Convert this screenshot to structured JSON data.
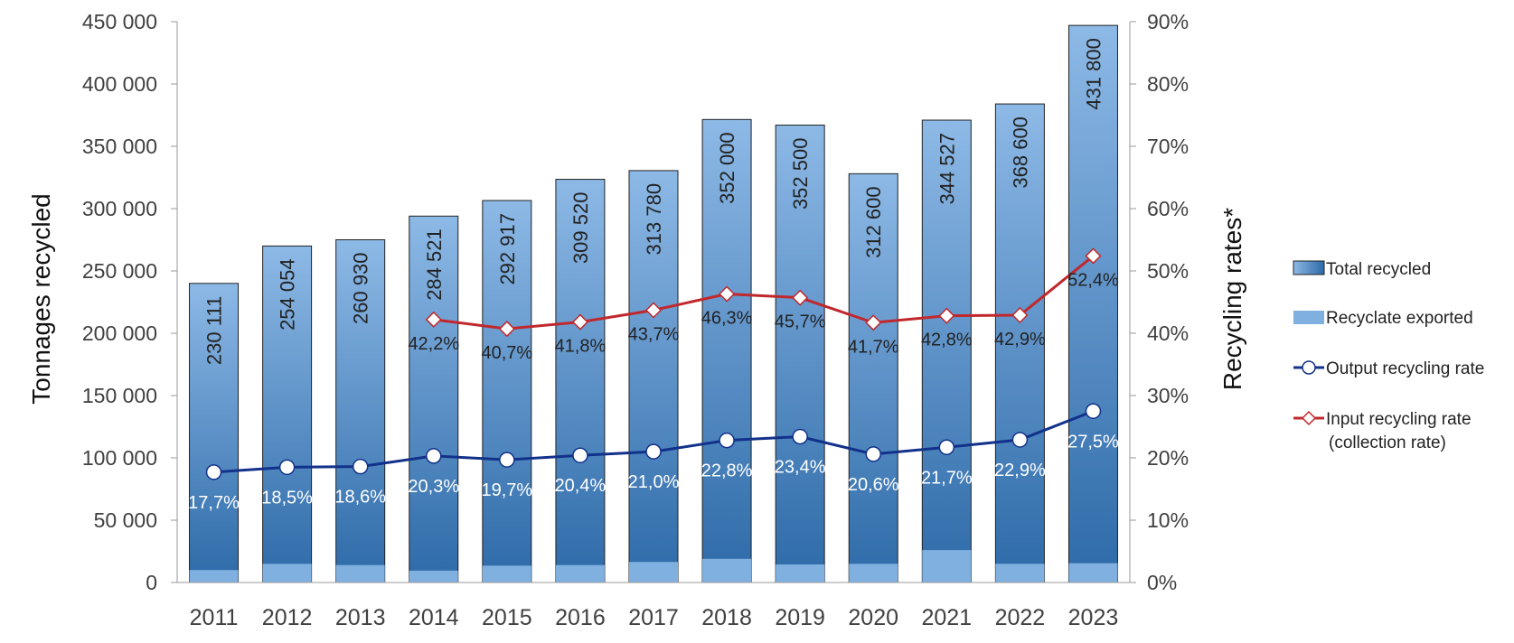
{
  "chart_data": {
    "type": "bar+line",
    "categories": [
      "2011",
      "2012",
      "2013",
      "2014",
      "2015",
      "2016",
      "2017",
      "2018",
      "2019",
      "2020",
      "2021",
      "2022",
      "2023"
    ],
    "series": [
      {
        "name": "Total recycled",
        "type": "bar",
        "axis": "left",
        "bar_heights": [
          240000,
          270000,
          275000,
          294000,
          306500,
          323500,
          330500,
          371500,
          367000,
          328000,
          371000,
          384000,
          447000
        ],
        "labels": [
          "230 111",
          "254 054",
          "260 930",
          "284 521",
          "292 917",
          "309 520",
          "313 780",
          "352 000",
          "352 500",
          "312 600",
          "344 527",
          "368 600",
          "431 800"
        ],
        "colors": {
          "top": "#8DB9E6",
          "bottom": "#2D6AA8"
        }
      },
      {
        "name": "Recyclate exported",
        "type": "bar",
        "axis": "left",
        "values": [
          10000,
          15000,
          14000,
          9500,
          13500,
          14000,
          16500,
          19000,
          14500,
          15000,
          26000,
          15000,
          15500
        ],
        "color": "#7FB0E0"
      },
      {
        "name": "Output recycling rate",
        "type": "line",
        "axis": "right",
        "values": [
          17.7,
          18.5,
          18.6,
          20.3,
          19.7,
          20.4,
          21.0,
          22.8,
          23.4,
          20.6,
          21.7,
          22.9,
          27.5
        ],
        "labels": [
          "17,7%",
          "18,5%",
          "18,6%",
          "20,3%",
          "19,7%",
          "20,4%",
          "21,0%",
          "22,8%",
          "23,4%",
          "20,6%",
          "21,7%",
          "22,9%",
          "27,5%"
        ],
        "color": "#12318A",
        "marker": "circle"
      },
      {
        "name": "Input recycling rate (collection rate)",
        "type": "line",
        "axis": "right",
        "values": [
          null,
          null,
          null,
          42.2,
          40.7,
          41.8,
          43.7,
          46.3,
          45.7,
          41.7,
          42.8,
          42.9,
          52.4
        ],
        "labels": [
          null,
          null,
          null,
          "42,2%",
          "40,7%",
          "41,8%",
          "43,7%",
          "46,3%",
          "45,7%",
          "41,7%",
          "42,8%",
          "42,9%",
          "52,4%"
        ],
        "color": "#C0282D",
        "marker": "diamond"
      }
    ],
    "y_left": {
      "label": "Tonnages recycled",
      "range": [
        0,
        450000
      ],
      "ticks": [
        "0",
        "50 000",
        "100 000",
        "150 000",
        "200 000",
        "250 000",
        "300 000",
        "350 000",
        "400 000",
        "450 000"
      ]
    },
    "y_right": {
      "label": "Recycling rates*",
      "range": [
        0,
        90
      ],
      "ticks": [
        "0%",
        "10%",
        "20%",
        "30%",
        "40%",
        "50%",
        "60%",
        "70%",
        "80%",
        "90%"
      ]
    },
    "legend": {
      "placement": "right",
      "entries": [
        "Total recycled",
        "Recyclate exported",
        "Output recycling rate",
        "Input recycling rate",
        "(collection rate)"
      ]
    },
    "grid": false
  }
}
